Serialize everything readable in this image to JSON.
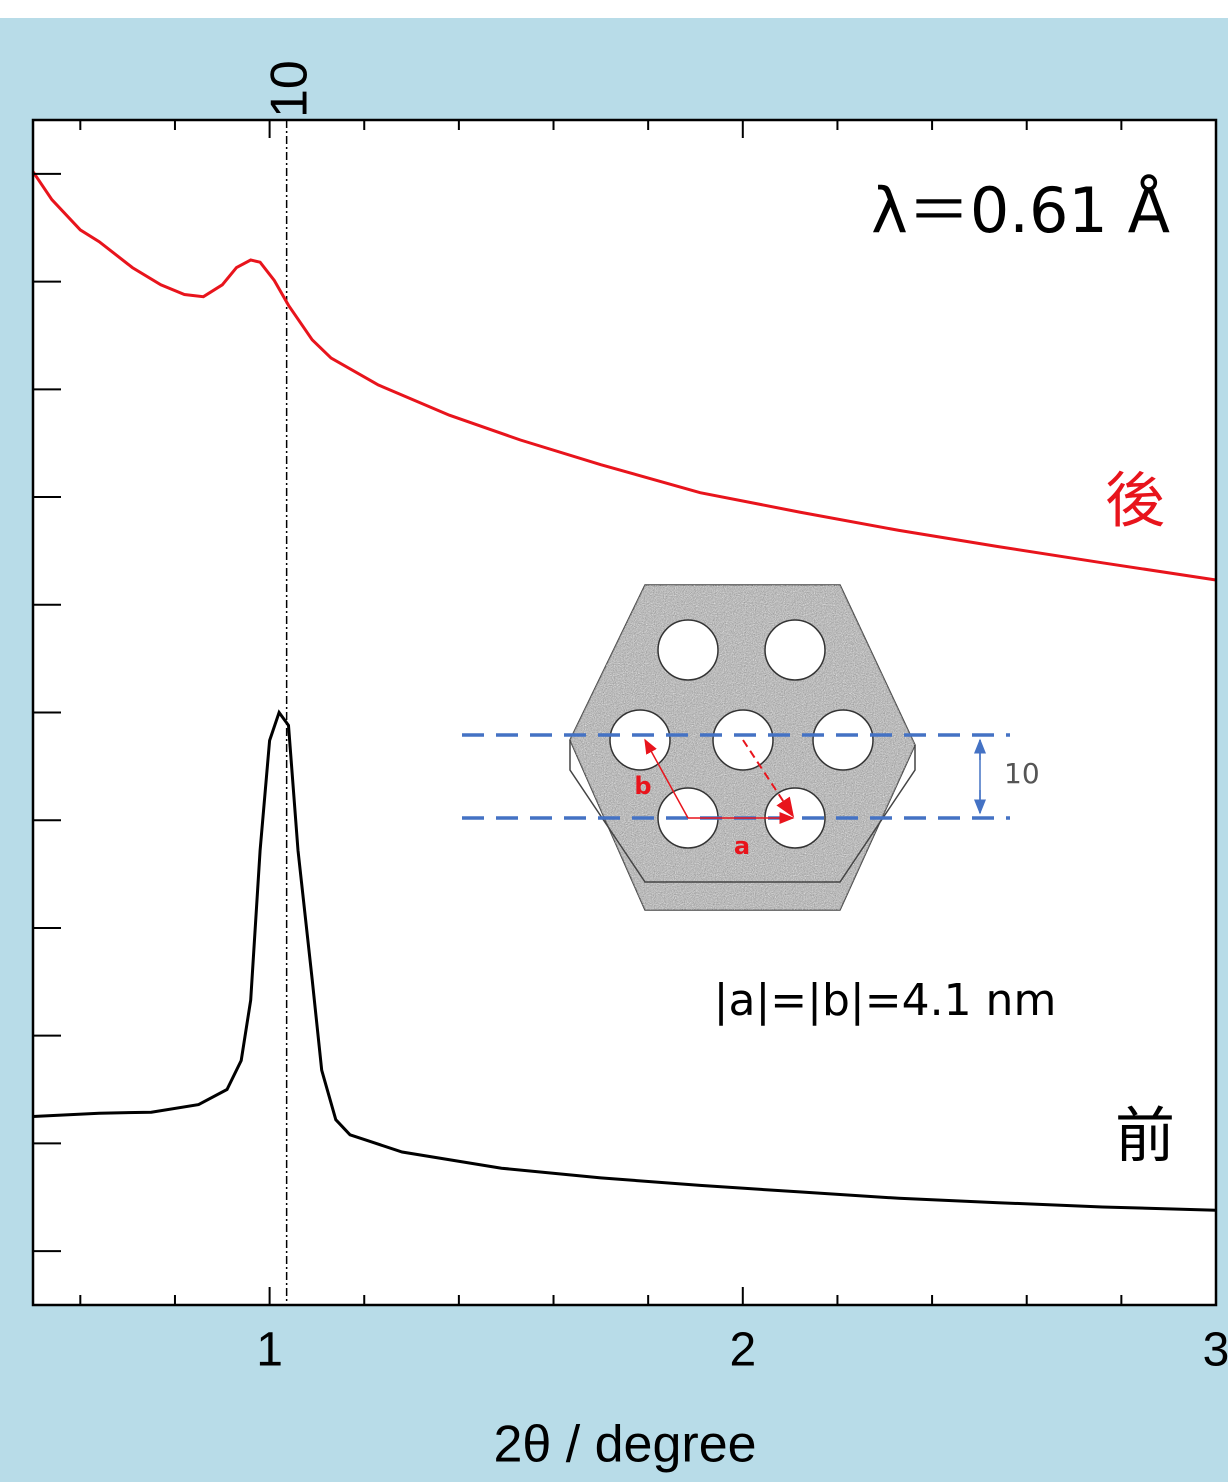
{
  "chart_data": {
    "type": "line",
    "x_label": "2θ / degree",
    "xlim": [
      0.5,
      3
    ],
    "xticks": [
      1,
      2,
      3
    ],
    "xminorticks": [
      0.6,
      0.8,
      1.2,
      1.4,
      1.6,
      1.8,
      2.2,
      2.4,
      2.6,
      2.8
    ],
    "ylim": [
      0,
      11
    ],
    "yticks": [
      0.5,
      1.5,
      2.5,
      3.5,
      4.5,
      5.5,
      6.5,
      7.5,
      8.5,
      9.5,
      10.5
    ],
    "reference_line": {
      "x": 1.036,
      "label": "10"
    },
    "annotations": [
      "λ＝0.61 Å",
      "|a|=|b|=4.1 nm"
    ],
    "inset": {
      "labels": [
        "b",
        "a",
        "10"
      ]
    },
    "series": [
      {
        "name": "後",
        "color": "#e8141c",
        "x": [
          0.5,
          0.54,
          0.6,
          0.64,
          0.71,
          0.77,
          0.82,
          0.86,
          0.9,
          0.93,
          0.96,
          0.98,
          1.01,
          1.04,
          1.09,
          1.13,
          1.23,
          1.38,
          1.53,
          1.7,
          1.91,
          2.12,
          2.33,
          2.54,
          2.76,
          3.0
        ],
        "values": [
          10.52,
          10.26,
          9.98,
          9.87,
          9.63,
          9.47,
          9.38,
          9.36,
          9.47,
          9.63,
          9.7,
          9.68,
          9.51,
          9.28,
          8.96,
          8.79,
          8.54,
          8.26,
          8.03,
          7.8,
          7.54,
          7.36,
          7.19,
          7.04,
          6.89,
          6.73
        ]
      },
      {
        "name": "前",
        "color": "#000000",
        "x": [
          0.5,
          0.64,
          0.75,
          0.85,
          0.91,
          0.94,
          0.96,
          0.98,
          1.0,
          1.02,
          1.04,
          1.06,
          1.09,
          1.11,
          1.14,
          1.17,
          1.28,
          1.49,
          1.7,
          1.91,
          2.12,
          2.33,
          2.54,
          2.76,
          3.0
        ],
        "values": [
          1.75,
          1.78,
          1.79,
          1.86,
          2.0,
          2.27,
          2.83,
          4.22,
          5.24,
          5.5,
          5.38,
          4.22,
          3.02,
          2.18,
          1.72,
          1.58,
          1.42,
          1.27,
          1.18,
          1.11,
          1.05,
          0.99,
          0.95,
          0.91,
          0.88
        ]
      }
    ]
  }
}
